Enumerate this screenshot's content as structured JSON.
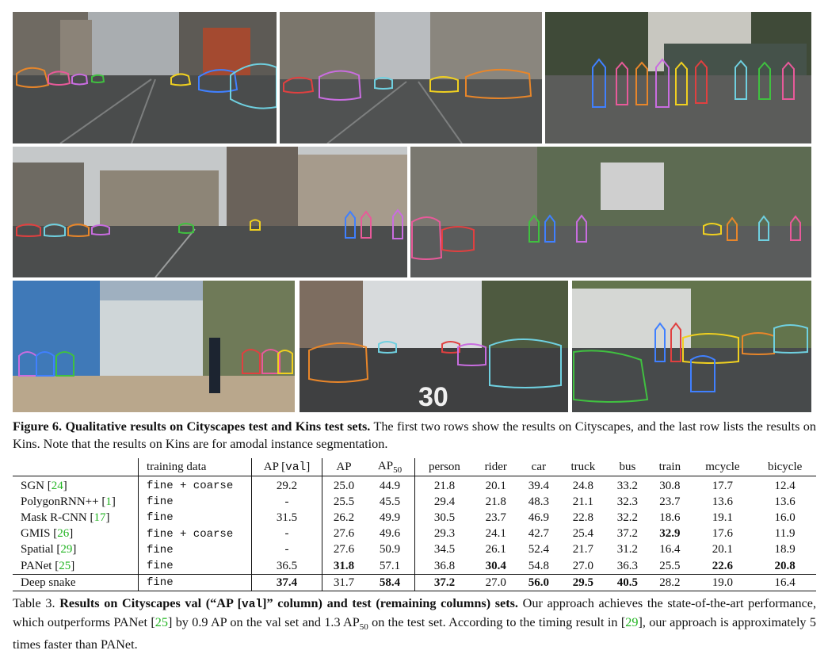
{
  "figure": {
    "caption_label": "Figure 6.",
    "caption_title": "Qualitative results on Cityscapes test and Kins test sets.",
    "caption_body": "The first two rows show the results on Cityscapes, and the last row lists the results on Kins. Note that the results on Kins are for amodal instance segmentation.",
    "panels": [
      {
        "id": "cityscapes-street-cars",
        "dataset": "Cityscapes"
      },
      {
        "id": "cityscapes-street-black-car",
        "dataset": "Cityscapes"
      },
      {
        "id": "cityscapes-pedestrians-kiosk",
        "dataset": "Cityscapes"
      },
      {
        "id": "cityscapes-gate-square",
        "dataset": "Cityscapes"
      },
      {
        "id": "cityscapes-crossing-signs",
        "dataset": "Cityscapes"
      },
      {
        "id": "kins-glass-building-walker",
        "dataset": "Kins"
      },
      {
        "id": "kins-road-30-marking",
        "dataset": "Kins"
      },
      {
        "id": "kins-cyclist-street",
        "dataset": "Kins"
      }
    ],
    "road_marking": "30"
  },
  "table": {
    "headers": {
      "method": "",
      "training": "training data",
      "ap_val_prefix": "AP [",
      "ap_val_mono": "val",
      "ap_val_suffix": "]",
      "ap": "AP",
      "ap50_base": "AP",
      "ap50_sub": "50",
      "classes": [
        "person",
        "rider",
        "car",
        "truck",
        "bus",
        "train",
        "mcycle",
        "bicycle"
      ]
    },
    "rows": [
      {
        "method": "SGN",
        "ref": "24",
        "training": "fine + coarse",
        "ap_val": "29.2",
        "ap": "25.0",
        "ap50": "44.9",
        "classes": [
          "21.8",
          "20.1",
          "39.4",
          "24.8",
          "33.2",
          "30.8",
          "17.7",
          "12.4"
        ]
      },
      {
        "method": "PolygonRNN++",
        "ref": "1",
        "training": "fine",
        "ap_val": "-",
        "ap": "25.5",
        "ap50": "45.5",
        "classes": [
          "29.4",
          "21.8",
          "48.3",
          "21.1",
          "32.3",
          "23.7",
          "13.6",
          "13.6"
        ]
      },
      {
        "method": "Mask R-CNN",
        "ref": "17",
        "training": "fine",
        "ap_val": "31.5",
        "ap": "26.2",
        "ap50": "49.9",
        "classes": [
          "30.5",
          "23.7",
          "46.9",
          "22.8",
          "32.2",
          "18.6",
          "19.1",
          "16.0"
        ]
      },
      {
        "method": "GMIS",
        "ref": "26",
        "training": "fine + coarse",
        "ap_val": "-",
        "ap": "27.6",
        "ap50": "49.6",
        "classes": [
          "29.3",
          "24.1",
          "42.7",
          "25.4",
          "37.2",
          "32.9",
          "17.6",
          "11.9"
        ]
      },
      {
        "method": "Spatial",
        "ref": "29",
        "training": "fine",
        "ap_val": "-",
        "ap": "27.6",
        "ap50": "50.9",
        "classes": [
          "34.5",
          "26.1",
          "52.4",
          "21.7",
          "31.2",
          "16.4",
          "20.1",
          "18.9"
        ]
      },
      {
        "method": "PANet",
        "ref": "25",
        "training": "fine",
        "ap_val": "36.5",
        "ap": "31.8",
        "ap50": "57.1",
        "classes": [
          "36.8",
          "30.4",
          "54.8",
          "27.0",
          "36.3",
          "25.5",
          "22.6",
          "20.8"
        ]
      },
      {
        "method": "Deep snake",
        "ref": "",
        "training": "fine",
        "ap_val": "37.4",
        "ap": "31.7",
        "ap50": "58.4",
        "classes": [
          "37.2",
          "27.0",
          "56.0",
          "29.5",
          "40.5",
          "28.2",
          "19.0",
          "16.4"
        ]
      }
    ],
    "caption_label": "Table 3.",
    "caption_title_a": "Results on Cityscapes val (“AP [",
    "caption_title_mono": "val",
    "caption_title_b": "]” column) and test (remaining columns) sets.",
    "caption_body_1": "Our approach achieves the state-of-the-art performance, which outperforms PANet [",
    "caption_ref_a": "25",
    "caption_body_2": "] by 0.9 AP on the val set and 1.3 AP",
    "caption_sub": "50",
    "caption_body_3": " on the test set. According to the timing result in [",
    "caption_ref_b": "29",
    "caption_body_4": "], our approach is approximately 5 times faster than PANet."
  },
  "colors": {
    "citation": "#22b422",
    "contours": [
      "#e8862a",
      "#e85a9a",
      "#6fd0e0",
      "#c96de0",
      "#f0d020",
      "#40c040",
      "#e04040",
      "#4080ff"
    ]
  }
}
